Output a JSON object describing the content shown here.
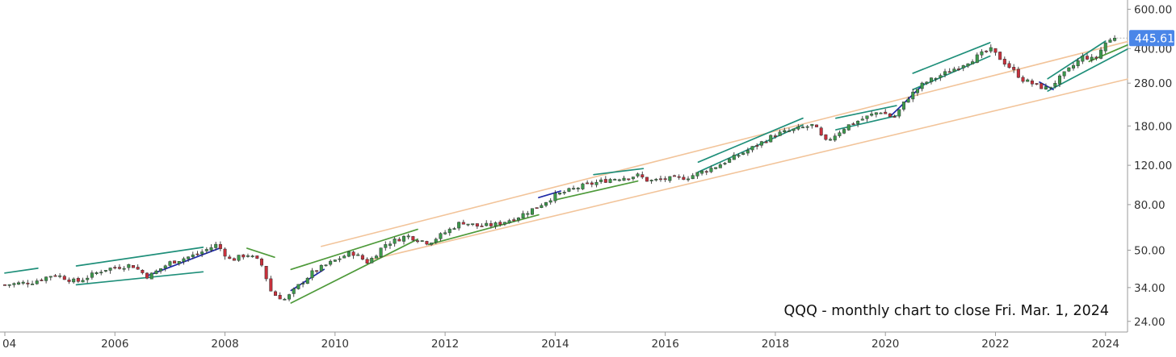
{
  "chart_data": {
    "type": "candlestick",
    "title": "QQQ - monthly chart to close Fri. Mar. 1, 2024",
    "xlabel": "",
    "ylabel": "",
    "x_tick_labels": [
      "04",
      "2006",
      "2008",
      "2010",
      "2012",
      "2014",
      "2016",
      "2018",
      "2020",
      "2022",
      "2024"
    ],
    "y_scale": "log",
    "y_tick_labels": [
      "600.00",
      "400.00",
      "280.00",
      "180.00",
      "120.00",
      "80.00",
      "50.00",
      "34.00",
      "24.00"
    ],
    "y_ticks": [
      600,
      400,
      280,
      180,
      120,
      80,
      50,
      34,
      24
    ],
    "xlim": [
      2004.0,
      2024.4
    ],
    "ylim": [
      21.5,
      660
    ],
    "last_price_label": "445.61",
    "last_price": 445.61,
    "grid": false,
    "colors": {
      "up": "#3c9a4c",
      "down": "#c8303c",
      "wick": "#333333",
      "channel_teal": "#1f8f7a",
      "trend_green": "#4e9a3a",
      "trend_blue": "#1e2aa8",
      "long_channel": "#f2c49a",
      "price_label_bg": "#4a86e8",
      "axis": "#999999",
      "text": "#333333"
    },
    "close_anchors": [
      [
        2004.0,
        35
      ],
      [
        2004.5,
        36
      ],
      [
        2004.9,
        39
      ],
      [
        2005.3,
        36
      ],
      [
        2005.8,
        41
      ],
      [
        2006.3,
        43
      ],
      [
        2006.6,
        38
      ],
      [
        2007.0,
        44
      ],
      [
        2007.5,
        48
      ],
      [
        2007.85,
        53
      ],
      [
        2008.1,
        45
      ],
      [
        2008.4,
        48
      ],
      [
        2008.65,
        44
      ],
      [
        2008.85,
        32
      ],
      [
        2009.1,
        30
      ],
      [
        2009.3,
        34
      ],
      [
        2009.6,
        40
      ],
      [
        2010.0,
        45
      ],
      [
        2010.3,
        49
      ],
      [
        2010.6,
        44
      ],
      [
        2010.9,
        53
      ],
      [
        2011.3,
        58
      ],
      [
        2011.7,
        54
      ],
      [
        2012.0,
        60
      ],
      [
        2012.3,
        67
      ],
      [
        2012.6,
        64
      ],
      [
        2012.9,
        65
      ],
      [
        2013.3,
        70
      ],
      [
        2013.7,
        79
      ],
      [
        2014.0,
        88
      ],
      [
        2014.5,
        97
      ],
      [
        2015.0,
        104
      ],
      [
        2015.5,
        108
      ],
      [
        2015.7,
        102
      ],
      [
        2016.0,
        104
      ],
      [
        2016.4,
        106
      ],
      [
        2016.9,
        118
      ],
      [
        2017.5,
        140
      ],
      [
        2018.0,
        165
      ],
      [
        2018.7,
        182
      ],
      [
        2018.9,
        152
      ],
      [
        2019.3,
        180
      ],
      [
        2019.9,
        210
      ],
      [
        2020.15,
        195
      ],
      [
        2020.4,
        240
      ],
      [
        2020.7,
        280
      ],
      [
        2021.2,
        320
      ],
      [
        2021.6,
        360
      ],
      [
        2021.9,
        398
      ],
      [
        2022.2,
        340
      ],
      [
        2022.5,
        290
      ],
      [
        2022.8,
        270
      ],
      [
        2022.95,
        265
      ],
      [
        2023.2,
        300
      ],
      [
        2023.6,
        370
      ],
      [
        2023.8,
        355
      ],
      [
        2024.0,
        425
      ],
      [
        2024.17,
        445.61
      ]
    ],
    "series": [
      {
        "id": "upper-channel-line",
        "kind": "line",
        "color": "#f2c49a",
        "points": [
          [
            2009.75,
            52
          ],
          [
            2024.4,
            430
          ]
        ]
      },
      {
        "id": "lower-channel-line",
        "kind": "line",
        "color": "#f2c49a",
        "points": [
          [
            2010.6,
            45
          ],
          [
            2024.4,
            292
          ]
        ]
      },
      {
        "id": "trend-2004",
        "kind": "line",
        "color": "#1f8f7a",
        "points": [
          [
            2004.0,
            39.5
          ],
          [
            2004.6,
            41.5
          ]
        ]
      },
      {
        "id": "channel-2005-top",
        "kind": "line",
        "color": "#1f8f7a",
        "points": [
          [
            2005.3,
            42.5
          ],
          [
            2007.6,
            51.5
          ]
        ]
      },
      {
        "id": "channel-2005-bottom",
        "kind": "line",
        "color": "#1f8f7a",
        "points": [
          [
            2005.3,
            35
          ],
          [
            2007.6,
            40
          ]
        ]
      },
      {
        "id": "trend-2006-blue",
        "kind": "line",
        "color": "#1e2aa8",
        "points": [
          [
            2006.6,
            38.5
          ],
          [
            2007.9,
            51
          ]
        ]
      },
      {
        "id": "trend-2008-green",
        "kind": "line",
        "color": "#4e9a3a",
        "points": [
          [
            2008.4,
            51
          ],
          [
            2008.9,
            46.5
          ]
        ]
      },
      {
        "id": "trend-2009-blue",
        "kind": "line",
        "color": "#1e2aa8",
        "points": [
          [
            2009.2,
            33
          ],
          [
            2009.8,
            41
          ]
        ]
      },
      {
        "id": "trend-2009-green",
        "kind": "line",
        "color": "#4e9a3a",
        "points": [
          [
            2009.2,
            29
          ],
          [
            2011.5,
            56
          ]
        ]
      },
      {
        "id": "channel-2010-top",
        "kind": "line",
        "color": "#4e9a3a",
        "points": [
          [
            2009.2,
            41
          ],
          [
            2011.5,
            62
          ]
        ]
      },
      {
        "id": "channel-2012-lower",
        "kind": "line",
        "color": "#4e9a3a",
        "points": [
          [
            2011.7,
            53
          ],
          [
            2013.7,
            72
          ]
        ]
      },
      {
        "id": "trend-2013-blue",
        "kind": "line",
        "color": "#1e2aa8",
        "points": [
          [
            2013.7,
            86
          ],
          [
            2014.1,
            92
          ]
        ]
      },
      {
        "id": "channel-2014-lower",
        "kind": "line",
        "color": "#4e9a3a",
        "points": [
          [
            2014.0,
            84
          ],
          [
            2015.5,
            102
          ]
        ]
      },
      {
        "id": "channel-2014-top",
        "kind": "line",
        "color": "#1f8f7a",
        "points": [
          [
            2014.7,
            109
          ],
          [
            2015.6,
            116
          ]
        ]
      },
      {
        "id": "channel-2016-lower",
        "kind": "line",
        "color": "#1f8f7a",
        "points": [
          [
            2016.6,
            112
          ],
          [
            2018.5,
            182
          ]
        ]
      },
      {
        "id": "channel-2016-top",
        "kind": "line",
        "color": "#1f8f7a",
        "points": [
          [
            2016.6,
            124
          ],
          [
            2018.5,
            195
          ]
        ]
      },
      {
        "id": "channel-2019-top",
        "kind": "line",
        "color": "#1f8f7a",
        "points": [
          [
            2019.1,
            195
          ],
          [
            2020.2,
            222
          ]
        ]
      },
      {
        "id": "channel-2019-bottom",
        "kind": "line",
        "color": "#1f8f7a",
        "points": [
          [
            2019.1,
            173
          ],
          [
            2020.2,
            200
          ]
        ]
      },
      {
        "id": "trend-2020-blue",
        "kind": "line",
        "color": "#1e2aa8",
        "points": [
          [
            2020.1,
            200
          ],
          [
            2020.7,
            278
          ]
        ]
      },
      {
        "id": "channel-2020-top",
        "kind": "line",
        "color": "#1f8f7a",
        "points": [
          [
            2020.5,
            310
          ],
          [
            2021.9,
            425
          ]
        ]
      },
      {
        "id": "channel-2020-bottom",
        "kind": "line",
        "color": "#1f8f7a",
        "points": [
          [
            2020.5,
            262
          ],
          [
            2021.9,
            370
          ]
        ]
      },
      {
        "id": "channel-2023-top",
        "kind": "line",
        "color": "#1f8f7a",
        "points": [
          [
            2022.95,
            293
          ],
          [
            2024.0,
            432
          ]
        ]
      },
      {
        "id": "channel-2023-bottom",
        "kind": "line",
        "color": "#1f8f7a",
        "points": [
          [
            2022.95,
            258
          ],
          [
            2024.4,
            398
          ]
        ]
      },
      {
        "id": "trend-2022-blue",
        "kind": "line",
        "color": "#1e2aa8",
        "points": [
          [
            2022.8,
            283
          ],
          [
            2023.05,
            262
          ]
        ]
      },
      {
        "id": "channel-2024-green",
        "kind": "line",
        "color": "#4e9a3a",
        "points": [
          [
            2023.7,
            350
          ],
          [
            2024.4,
            415
          ]
        ]
      }
    ]
  }
}
